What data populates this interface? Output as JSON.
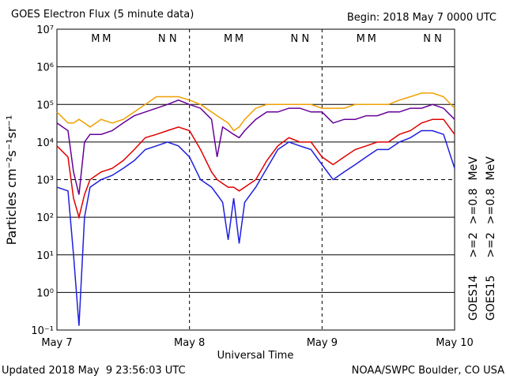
{
  "chart_data": {
    "type": "line",
    "title": "GOES Electron Flux (5 minute data)",
    "subtitle": "Begin: 2018 May 7 0000 UTC",
    "ylabel": "Particles cm⁻²s⁻¹sr⁻¹",
    "xlabel": "Universal Time",
    "footer_left": "Updated 2018 May  9 23:56:03 UTC",
    "footer_right": "NOAA/SWPC Boulder, CO USA",
    "log_y": true,
    "grid": true,
    "threshold_line": 1000,
    "legend_position": "right",
    "legend_unit": "MeV",
    "xlim": [
      0,
      72
    ],
    "xticks": [
      {
        "value": 0,
        "label": "May 7"
      },
      {
        "value": 24,
        "label": "May 8"
      },
      {
        "value": 48,
        "label": "May 9"
      },
      {
        "value": 72,
        "label": "May 10"
      }
    ],
    "ylim": [
      0.1,
      10000000
    ],
    "yticks": [
      {
        "value": 0.1,
        "label": "10⁻¹"
      },
      {
        "value": 1,
        "label": "10⁰"
      },
      {
        "value": 10,
        "label": "10¹"
      },
      {
        "value": 100,
        "label": "10²"
      },
      {
        "value": 1000,
        "label": "10³"
      },
      {
        "value": 10000,
        "label": "10⁴"
      },
      {
        "value": 100000,
        "label": "10⁵"
      },
      {
        "value": 1000000,
        "label": "10⁶"
      },
      {
        "value": 10000000,
        "label": "10⁷"
      }
    ],
    "markers": [
      {
        "text": "M",
        "color": "#1f1fe0",
        "x": 7
      },
      {
        "text": "M",
        "color": "#e00000",
        "x": 9
      },
      {
        "text": "N",
        "color": "#1f1fe0",
        "x": 19
      },
      {
        "text": "N",
        "color": "#e00000",
        "x": 21
      },
      {
        "text": "M",
        "color": "#1f1fe0",
        "x": 31
      },
      {
        "text": "M",
        "color": "#e00000",
        "x": 33
      },
      {
        "text": "N",
        "color": "#1f1fe0",
        "x": 43
      },
      {
        "text": "N",
        "color": "#e00000",
        "x": 45
      },
      {
        "text": "M",
        "color": "#1f1fe0",
        "x": 55
      },
      {
        "text": "M",
        "color": "#e00000",
        "x": 57
      },
      {
        "text": "N",
        "color": "#1f1fe0",
        "x": 67
      },
      {
        "text": "N",
        "color": "#e00000",
        "x": 69
      }
    ],
    "x": [
      0,
      2,
      3,
      4,
      5,
      6,
      8,
      10,
      12,
      14,
      16,
      18,
      20,
      22,
      24,
      26,
      28,
      29,
      30,
      31,
      32,
      33,
      34,
      36,
      38,
      40,
      42,
      44,
      46,
      48,
      50,
      52,
      54,
      56,
      58,
      60,
      62,
      64,
      66,
      68,
      70,
      72
    ],
    "series": [
      {
        "name": ">=2",
        "satellite": "GOES14",
        "color": "#1f1fe0",
        "values": [
          630,
          500,
          10,
          0.13,
          100,
          630,
          1000,
          1300,
          2000,
          3200,
          6300,
          7900,
          10000,
          7900,
          4000,
          1000,
          630,
          400,
          250,
          25,
          320,
          20,
          250,
          630,
          2000,
          6300,
          10000,
          7900,
          6300,
          2500,
          1000,
          1600,
          2500,
          4000,
          6300,
          6300,
          10000,
          13000,
          20000,
          20000,
          16000,
          2000
        ]
      },
      {
        "name": ">=0.8",
        "satellite": "GOES14",
        "color": "#660099",
        "values": [
          32000,
          20000,
          1600,
          400,
          10000,
          16000,
          16000,
          20000,
          32000,
          50000,
          63000,
          79000,
          100000,
          130000,
          100000,
          79000,
          40000,
          4000,
          25000,
          20000,
          16000,
          13000,
          20000,
          40000,
          63000,
          63000,
          79000,
          79000,
          63000,
          63000,
          32000,
          40000,
          40000,
          50000,
          50000,
          63000,
          63000,
          79000,
          79000,
          100000,
          79000,
          40000
        ]
      },
      {
        "name": ">=2",
        "satellite": "GOES15",
        "color": "#e00000",
        "values": [
          7900,
          4000,
          320,
          100,
          400,
          1000,
          1600,
          2000,
          3200,
          6300,
          13000,
          16000,
          20000,
          25000,
          20000,
          6300,
          1600,
          1000,
          790,
          630,
          630,
          500,
          630,
          1000,
          3200,
          7900,
          13000,
          10000,
          10000,
          4000,
          2500,
          4000,
          6300,
          7900,
          10000,
          10000,
          16000,
          20000,
          32000,
          40000,
          40000,
          16000
        ]
      },
      {
        "name": ">=0.8",
        "satellite": "GOES15",
        "color": "#f0a000",
        "values": [
          63000,
          32000,
          32000,
          40000,
          32000,
          25000,
          40000,
          32000,
          40000,
          63000,
          100000,
          160000,
          160000,
          160000,
          130000,
          100000,
          63000,
          50000,
          40000,
          32000,
          20000,
          25000,
          40000,
          79000,
          100000,
          100000,
          100000,
          100000,
          100000,
          79000,
          79000,
          79000,
          100000,
          100000,
          100000,
          100000,
          130000,
          160000,
          200000,
          200000,
          160000,
          79000
        ]
      }
    ]
  }
}
